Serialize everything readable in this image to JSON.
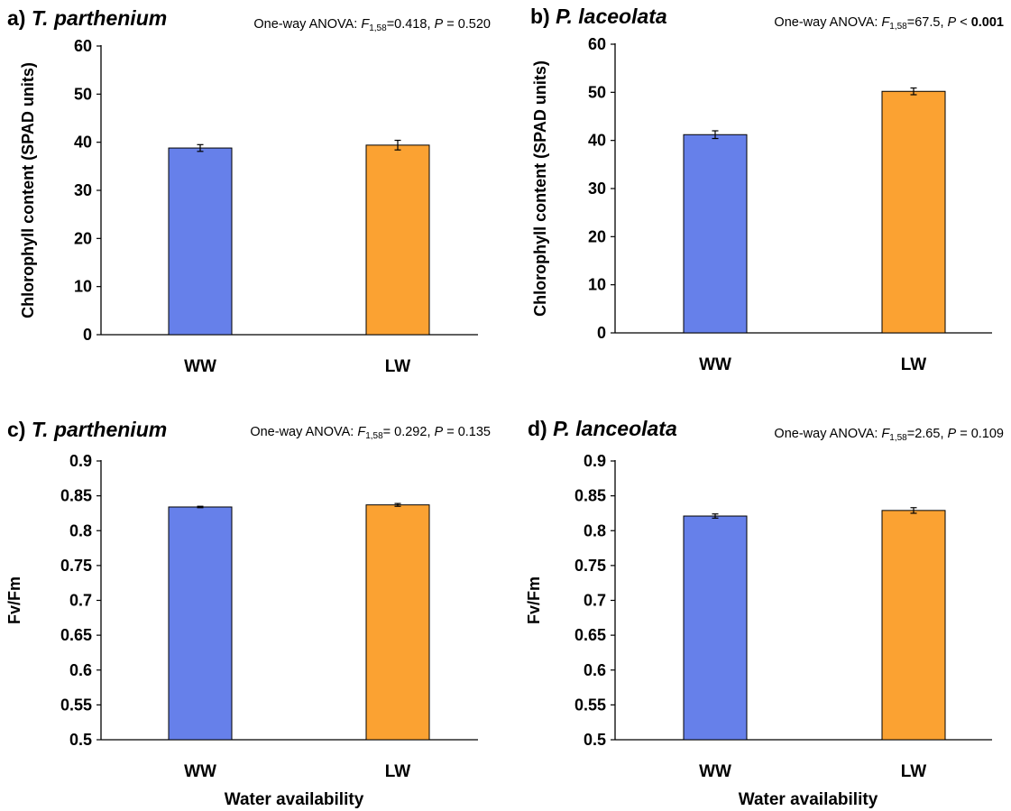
{
  "chart_data": [
    {
      "type": "bar",
      "panel_letter": "a)",
      "species": "T. parthenium",
      "stats": {
        "prefix": "One-way ANOVA: ",
        "F": "F",
        "df": "1,58",
        "F_value": "=0.418, ",
        "P": "P",
        "P_rel": " = ",
        "P_value": "0.520",
        "P_value_bold": false
      },
      "ylabel": "Chlorophyll content (SPAD units)",
      "xlabel": "",
      "ylim": [
        0,
        60
      ],
      "yticks": [
        "0",
        "10",
        "20",
        "30",
        "40",
        "50",
        "60"
      ],
      "categories": [
        "WW",
        "LW"
      ],
      "values": [
        38.8,
        39.4
      ],
      "errors": [
        0.7,
        1.0
      ],
      "colors": [
        "#6680ea",
        "#fba232"
      ]
    },
    {
      "type": "bar",
      "panel_letter": "b)",
      "species": "P. laceolata",
      "stats": {
        "prefix": "One-way ANOVA: ",
        "F": "F",
        "df": "1,58",
        "F_value": "=67.5, ",
        "P": "P",
        "P_rel": " < ",
        "P_value": "0.001",
        "P_value_bold": true
      },
      "ylabel": "Chlorophyll content (SPAD units)",
      "xlabel": "",
      "ylim": [
        0,
        60
      ],
      "yticks": [
        "0",
        "10",
        "20",
        "30",
        "40",
        "50",
        "60"
      ],
      "categories": [
        "WW",
        "LW"
      ],
      "values": [
        41.2,
        50.2
      ],
      "errors": [
        0.8,
        0.7
      ],
      "colors": [
        "#6680ea",
        "#fba232"
      ]
    },
    {
      "type": "bar",
      "panel_letter": "c)",
      "species": "T. parthenium",
      "stats": {
        "prefix": "One-way ANOVA: ",
        "F": "F",
        "df": "1,58",
        "F_value": "= 0.292, ",
        "P": "P",
        "P_rel": " = ",
        "P_value": "0.135",
        "P_value_bold": false
      },
      "ylabel": "Fv/Fm",
      "xlabel": "Water availability",
      "ylim": [
        0.5,
        0.9
      ],
      "yticks": [
        "0.5",
        "0.55",
        "0.6",
        "0.65",
        "0.7",
        "0.75",
        "0.8",
        "0.85",
        "0.9"
      ],
      "categories": [
        "WW",
        "LW"
      ],
      "values": [
        0.834,
        0.837
      ],
      "errors": [
        0.001,
        0.002
      ],
      "colors": [
        "#6680ea",
        "#fba232"
      ]
    },
    {
      "type": "bar",
      "panel_letter": "d)",
      "species": "P. lanceolata",
      "stats": {
        "prefix": "One-way ANOVA: ",
        "F": "F",
        "df": "1,58",
        "F_value": "=2.65, ",
        "P": "P",
        "P_rel": " = ",
        "P_value": "0.109",
        "P_value_bold": false
      },
      "ylabel": "Fv/Fm",
      "xlabel": "Water availability",
      "ylim": [
        0.5,
        0.9
      ],
      "yticks": [
        "0.5",
        "0.55",
        "0.6",
        "0.65",
        "0.7",
        "0.75",
        "0.8",
        "0.85",
        "0.9"
      ],
      "categories": [
        "WW",
        "LW"
      ],
      "values": [
        0.821,
        0.829
      ],
      "errors": [
        0.003,
        0.004
      ],
      "colors": [
        "#6680ea",
        "#fba232"
      ]
    }
  ]
}
